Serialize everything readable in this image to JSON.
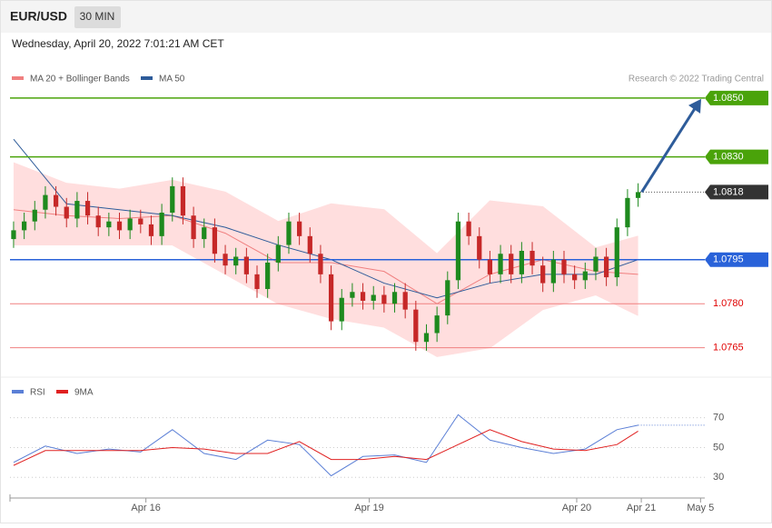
{
  "header": {
    "symbol": "EUR/USD",
    "interval": "30 MIN",
    "datetime": "Wednesday, April 20, 2022 7:01:21 AM CET",
    "credit": "Research © 2022 Trading Central"
  },
  "chart_data": [
    {
      "type": "candlestick",
      "x": [
        0,
        1,
        2,
        3,
        4,
        5,
        6,
        7,
        8,
        9,
        10,
        11,
        12,
        13,
        14,
        15,
        16,
        17,
        18,
        19,
        20,
        21,
        22,
        23,
        24,
        25,
        26,
        27,
        28,
        29,
        30,
        31,
        32,
        33,
        34,
        35,
        36,
        37,
        38,
        39,
        40,
        41,
        42,
        43,
        44,
        45,
        46,
        47,
        48,
        49,
        50,
        51,
        52,
        53,
        54,
        55,
        56,
        57,
        58,
        59
      ],
      "open": [
        1.0802,
        1.0805,
        1.0808,
        1.0812,
        1.0817,
        1.0813,
        1.0809,
        1.0815,
        1.081,
        1.0806,
        1.0808,
        1.0805,
        1.0809,
        1.0807,
        1.0803,
        1.0811,
        1.082,
        1.081,
        1.0802,
        1.0806,
        1.0797,
        1.0793,
        1.0796,
        1.079,
        1.0785,
        1.0794,
        1.08,
        1.0808,
        1.0803,
        1.0797,
        1.079,
        1.0774,
        1.0782,
        1.0784,
        1.0781,
        1.0783,
        1.078,
        1.0784,
        1.0778,
        1.0767,
        1.077,
        1.0776,
        1.0788,
        1.0808,
        1.0803,
        1.0795,
        1.079,
        1.0797,
        1.079,
        1.0798,
        1.0793,
        1.0787,
        1.0795,
        1.079,
        1.0788,
        1.0791,
        1.0796,
        1.0789,
        1.0806,
        1.0816
      ],
      "high": [
        1.0808,
        1.0811,
        1.0815,
        1.082,
        1.082,
        1.0816,
        1.0818,
        1.0818,
        1.0813,
        1.0811,
        1.0811,
        1.0812,
        1.0812,
        1.081,
        1.0814,
        1.0823,
        1.0823,
        1.0813,
        1.0809,
        1.0809,
        1.08,
        1.0799,
        1.0799,
        1.0793,
        1.0797,
        1.0803,
        1.0811,
        1.0811,
        1.0806,
        1.08,
        1.0793,
        1.0785,
        1.0787,
        1.0787,
        1.0786,
        1.0786,
        1.0787,
        1.0787,
        1.0781,
        1.0773,
        1.0779,
        1.0791,
        1.0811,
        1.0811,
        1.0806,
        1.0798,
        1.08,
        1.08,
        1.0801,
        1.0801,
        1.0796,
        1.0798,
        1.0798,
        1.0793,
        1.0794,
        1.0799,
        1.0799,
        1.0809,
        1.0819,
        1.0821
      ],
      "low": [
        1.0799,
        1.0802,
        1.0805,
        1.0809,
        1.081,
        1.0806,
        1.0806,
        1.0807,
        1.0803,
        1.0803,
        1.0802,
        1.0802,
        1.0804,
        1.08,
        1.08,
        1.0808,
        1.0807,
        1.0799,
        1.0799,
        1.0794,
        1.079,
        1.079,
        1.0787,
        1.0782,
        1.0782,
        1.0791,
        1.0797,
        1.08,
        1.0794,
        1.0787,
        1.0771,
        1.0771,
        1.0779,
        1.0778,
        1.0778,
        1.0777,
        1.0777,
        1.0775,
        1.0764,
        1.0764,
        1.0767,
        1.0773,
        1.0785,
        1.08,
        1.0792,
        1.0787,
        1.0787,
        1.0787,
        1.0787,
        1.079,
        1.0784,
        1.0784,
        1.0787,
        1.0785,
        1.0785,
        1.0788,
        1.0786,
        1.0786,
        1.0803,
        1.0813
      ],
      "close": [
        1.0805,
        1.0808,
        1.0812,
        1.0817,
        1.0813,
        1.0809,
        1.0815,
        1.081,
        1.0806,
        1.0808,
        1.0805,
        1.0809,
        1.0807,
        1.0803,
        1.0811,
        1.082,
        1.081,
        1.0802,
        1.0806,
        1.0797,
        1.0793,
        1.0796,
        1.079,
        1.0785,
        1.0794,
        1.08,
        1.0808,
        1.0803,
        1.0797,
        1.079,
        1.0774,
        1.0782,
        1.0784,
        1.0781,
        1.0783,
        1.078,
        1.0784,
        1.0778,
        1.0767,
        1.077,
        1.0776,
        1.0788,
        1.0808,
        1.0803,
        1.0795,
        1.079,
        1.0797,
        1.079,
        1.0798,
        1.0793,
        1.0787,
        1.0795,
        1.079,
        1.0788,
        1.0791,
        1.0796,
        1.0789,
        1.0806,
        1.0816,
        1.0818
      ],
      "up_color": "#1e8a1e",
      "down_color": "#c62828",
      "xlim": [
        -0.34,
        65.3
      ],
      "ylim": [
        1.0755,
        1.0854
      ],
      "xticks": [
        {
          "value": 12.5,
          "label": "Apr 16"
        },
        {
          "value": 33.6,
          "label": "Apr 19"
        },
        {
          "value": 53.2,
          "label": "Apr 20"
        },
        {
          "value": 59.3,
          "label": "Apr 21"
        },
        {
          "value": 64.9,
          "label": "May 5"
        }
      ],
      "series": [
        {
          "name": "MA 20 + Bollinger Bands",
          "color": "#f08080",
          "band_color": "#ffdede",
          "x": [
            0,
            5,
            10,
            15,
            20,
            25,
            30,
            35,
            40,
            45,
            50,
            55,
            59
          ],
          "values": [
            1.0812,
            1.081,
            1.0809,
            1.081,
            1.0804,
            1.0794,
            1.0794,
            1.0791,
            1.078,
            1.079,
            1.0795,
            1.0791,
            1.079
          ],
          "upper": [
            1.0828,
            1.0821,
            1.0819,
            1.0822,
            1.0818,
            1.0808,
            1.0814,
            1.0812,
            1.0797,
            1.0815,
            1.0813,
            1.0799,
            1.0803
          ],
          "lower": [
            1.08,
            1.08,
            1.08,
            1.08,
            1.079,
            1.078,
            1.0775,
            1.0772,
            1.0762,
            1.0765,
            1.0778,
            1.0783,
            1.0776
          ]
        },
        {
          "name": "MA 50",
          "color": "#2e5c9a",
          "x": [
            0,
            5,
            10,
            15,
            20,
            25,
            30,
            35,
            40,
            45,
            50,
            55,
            59
          ],
          "values": [
            1.0836,
            1.0814,
            1.0812,
            1.081,
            1.0806,
            1.08,
            1.0795,
            1.0787,
            1.0782,
            1.0787,
            1.079,
            1.079,
            1.0795
          ]
        }
      ],
      "levels": [
        {
          "value": 1.085,
          "label": "1.0850",
          "color": "#4aa30a",
          "style": "badge"
        },
        {
          "value": 1.083,
          "label": "1.0830",
          "color": "#4aa30a",
          "style": "badge"
        },
        {
          "value": 1.0818,
          "label": "1.0818",
          "color": "#333333",
          "style": "current"
        },
        {
          "value": 1.0795,
          "label": "1.0795",
          "color": "#2962d9",
          "style": "badge"
        },
        {
          "value": 1.078,
          "label": "1.0780",
          "color": "#f08080",
          "style": "text"
        },
        {
          "value": 1.0765,
          "label": "1.0765",
          "color": "#f08080",
          "style": "text"
        }
      ]
    },
    {
      "type": "line",
      "xlim": [
        -0.34,
        65.3
      ],
      "ylim": [
        21,
        82
      ],
      "yticks": [
        30,
        50,
        70
      ],
      "series": [
        {
          "name": "RSI",
          "color": "#5b7fd6",
          "x": [
            0,
            3,
            6,
            9,
            12,
            15,
            18,
            21,
            24,
            27,
            30,
            33,
            36,
            39,
            42,
            45,
            48,
            51,
            54,
            57,
            59
          ],
          "values": [
            40,
            51,
            46,
            49,
            47,
            62,
            46,
            42,
            55,
            52,
            31,
            44,
            45,
            40,
            72,
            55,
            50,
            46,
            49,
            62,
            65
          ]
        },
        {
          "name": "9MA",
          "color": "#e02020",
          "x": [
            0,
            3,
            6,
            9,
            12,
            15,
            18,
            21,
            24,
            27,
            30,
            33,
            36,
            39,
            42,
            45,
            48,
            51,
            54,
            57,
            59
          ],
          "values": [
            38,
            48,
            48,
            48,
            48,
            50,
            49,
            46,
            46,
            54,
            42,
            42,
            44,
            42,
            52,
            62,
            54,
            49,
            48,
            52,
            61
          ]
        }
      ]
    }
  ]
}
